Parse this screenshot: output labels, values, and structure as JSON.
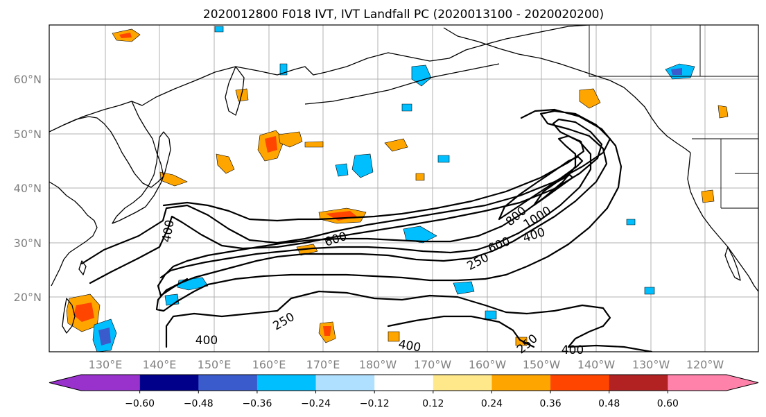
{
  "title": "2020012800 F018 IVT, IVT Landfall PC (2020013100 - 2020020200)",
  "lat_labels": [
    "60°N",
    "50°N",
    "40°N",
    "30°N",
    "20°N"
  ],
  "lon_labels": [
    "130°E",
    "140°E",
    "150°E",
    "160°E",
    "170°E",
    "180°W",
    "170°W",
    "160°W",
    "150°W",
    "140°W",
    "130°W",
    "120°W"
  ],
  "colorbar": {
    "colors": [
      "#9932cc",
      "#00008b",
      "#3a5bcc",
      "#00bfff",
      "#b0e0ff",
      "#ffffff",
      "#ffe88a",
      "#ffa500",
      "#ff4500",
      "#b22222",
      "#ff82ab"
    ],
    "labels": [
      "−0.60",
      "−0.48",
      "−0.36",
      "−0.24",
      "−0.12",
      "0.12",
      "0.24",
      "0.36",
      "0.48",
      "0.60"
    ]
  },
  "contour_labels": [
    "400",
    "600",
    "800",
    "1000",
    "600",
    "400",
    "250",
    "250",
    "400",
    "400",
    "250",
    "400"
  ]
}
